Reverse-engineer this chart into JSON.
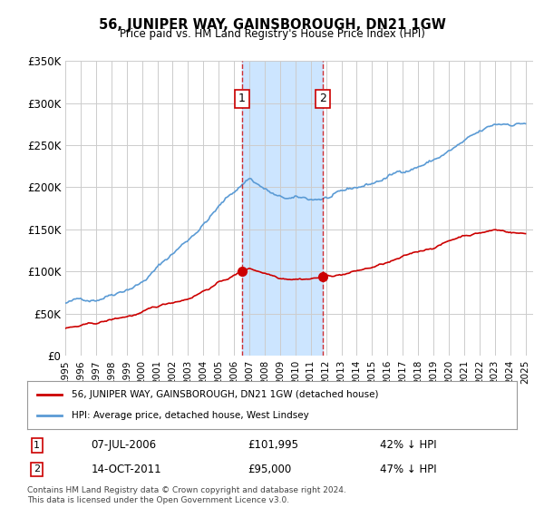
{
  "title": "56, JUNIPER WAY, GAINSBOROUGH, DN21 1GW",
  "subtitle": "Price paid vs. HM Land Registry's House Price Index (HPI)",
  "ylabel_ticks": [
    "£0",
    "£50K",
    "£100K",
    "£150K",
    "£200K",
    "£250K",
    "£300K",
    "£350K"
  ],
  "ylim": [
    0,
    350000
  ],
  "xlim_start": 1995.0,
  "xlim_end": 2025.5,
  "marker1_date": 2006.52,
  "marker1_label": "1",
  "marker1_price": 101995,
  "marker1_text": "07-JUL-2006",
  "marker1_price_text": "£101,995",
  "marker1_pct_text": "42% ↓ HPI",
  "marker2_date": 2011.79,
  "marker2_label": "2",
  "marker2_price": 95000,
  "marker2_text": "14-OCT-2011",
  "marker2_price_text": "£95,000",
  "marker2_pct_text": "47% ↓ HPI",
  "red_line_label": "56, JUNIPER WAY, GAINSBOROUGH, DN21 1GW (detached house)",
  "blue_line_label": "HPI: Average price, detached house, West Lindsey",
  "footer": "Contains HM Land Registry data © Crown copyright and database right 2024.\nThis data is licensed under the Open Government Licence v3.0.",
  "shade_color": "#cce5ff",
  "red_color": "#cc0000",
  "blue_color": "#5b9bd5",
  "grid_color": "#cccccc",
  "background_color": "#ffffff"
}
